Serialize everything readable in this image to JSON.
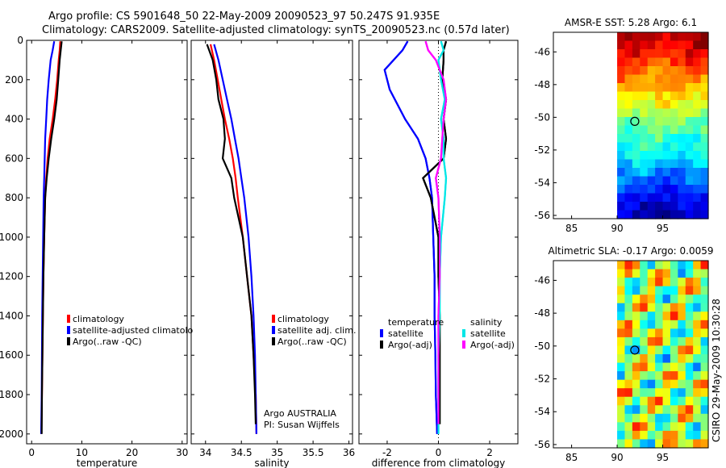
{
  "title": {
    "line1": "Argo profile: CS 5901648_50 22-May-2009 20090523_97 50.247S 91.935E",
    "line2": "Climatology: CARS2009. Satellite-adjusted climatology: synTS_20090523.nc (0.57d later)"
  },
  "stamp": "CSIRO 29-May-2009 10:30:28",
  "colors": {
    "climatology": "#ff0000",
    "satellite": "#0000ff",
    "argo": "#000000",
    "salinity_satellite": "#00e6e6",
    "salinity_argo": "#ff00ff"
  },
  "chart_data": [
    {
      "type": "line",
      "id": "temperature",
      "xlabel": "temperature",
      "ylabel": "",
      "xlim": [
        -1,
        31
      ],
      "ylim": [
        2050,
        0
      ],
      "xticks": [
        0,
        10,
        20,
        30
      ],
      "yticks": [
        0,
        200,
        400,
        600,
        800,
        1000,
        1200,
        1400,
        1600,
        1800,
        2000
      ],
      "legend": [
        "climatology",
        "satellite-adjusted climatolo",
        "Argo(..raw -QC)"
      ],
      "series": [
        {
          "name": "climatology",
          "color": "#ff0000",
          "points": [
            [
              5.7,
              5
            ],
            [
              5.6,
              50
            ],
            [
              5.4,
              100
            ],
            [
              5.1,
              200
            ],
            [
              4.7,
              300
            ],
            [
              4.2,
              400
            ],
            [
              3.6,
              500
            ],
            [
              3.2,
              600
            ],
            [
              2.9,
              700
            ],
            [
              2.7,
              800
            ],
            [
              2.5,
              1000
            ],
            [
              2.35,
              1200
            ],
            [
              2.25,
              1400
            ],
            [
              2.15,
              1600
            ],
            [
              2.05,
              1800
            ],
            [
              1.95,
              2000
            ]
          ]
        },
        {
          "name": "satellite-adjusted climatolo",
          "color": "#0000ff",
          "points": [
            [
              4.5,
              5
            ],
            [
              4.2,
              50
            ],
            [
              3.8,
              100
            ],
            [
              3.4,
              200
            ],
            [
              3.1,
              300
            ],
            [
              2.9,
              400
            ],
            [
              2.7,
              500
            ],
            [
              2.6,
              600
            ],
            [
              2.5,
              700
            ],
            [
              2.4,
              800
            ],
            [
              2.3,
              1000
            ],
            [
              2.2,
              1200
            ],
            [
              2.1,
              1400
            ],
            [
              2.05,
              1600
            ],
            [
              2.0,
              1800
            ],
            [
              1.9,
              2000
            ]
          ]
        },
        {
          "name": "Argo(..raw -QC)",
          "color": "#000000",
          "points": [
            [
              6.0,
              5
            ],
            [
              5.8,
              50
            ],
            [
              5.6,
              100
            ],
            [
              5.3,
              200
            ],
            [
              5.0,
              300
            ],
            [
              4.5,
              400
            ],
            [
              3.9,
              500
            ],
            [
              3.4,
              600
            ],
            [
              3.0,
              700
            ],
            [
              2.7,
              800
            ],
            [
              2.5,
              1000
            ],
            [
              2.35,
              1200
            ],
            [
              2.25,
              1400
            ],
            [
              2.15,
              1600
            ],
            [
              2.05,
              1800
            ],
            [
              2.0,
              2000
            ]
          ]
        }
      ]
    },
    {
      "type": "line",
      "id": "salinity",
      "xlabel": "salinity",
      "xlim": [
        33.8,
        36.05
      ],
      "ylim": [
        2050,
        0
      ],
      "xticks": [
        34,
        34.5,
        35,
        35.5,
        36
      ],
      "legend": [
        "climatology",
        "satellite adj. clim.",
        "Argo(..raw -QC)"
      ],
      "annotation": [
        "Argo AUSTRALIA",
        "PI: Susan Wijffels"
      ],
      "series": [
        {
          "name": "climatology",
          "color": "#ff0000",
          "points": [
            [
              34.07,
              20
            ],
            [
              34.12,
              100
            ],
            [
              34.17,
              200
            ],
            [
              34.22,
              300
            ],
            [
              34.27,
              400
            ],
            [
              34.33,
              500
            ],
            [
              34.38,
              600
            ],
            [
              34.42,
              700
            ],
            [
              34.45,
              800
            ],
            [
              34.52,
              1000
            ],
            [
              34.58,
              1200
            ],
            [
              34.64,
              1400
            ],
            [
              34.67,
              1600
            ],
            [
              34.7,
              1800
            ],
            [
              34.71,
              2000
            ]
          ]
        },
        {
          "name": "satellite adj. clim.",
          "color": "#0000ff",
          "points": [
            [
              34.12,
              20
            ],
            [
              34.18,
              100
            ],
            [
              34.24,
              200
            ],
            [
              34.3,
              300
            ],
            [
              34.36,
              400
            ],
            [
              34.41,
              500
            ],
            [
              34.46,
              600
            ],
            [
              34.5,
              700
            ],
            [
              34.54,
              800
            ],
            [
              34.6,
              1000
            ],
            [
              34.64,
              1200
            ],
            [
              34.67,
              1400
            ],
            [
              34.69,
              1600
            ],
            [
              34.7,
              1800
            ],
            [
              34.71,
              2000
            ]
          ]
        },
        {
          "name": "Argo(..raw -QC)",
          "color": "#000000",
          "points": [
            [
              34.02,
              20
            ],
            [
              34.1,
              100
            ],
            [
              34.15,
              200
            ],
            [
              34.18,
              300
            ],
            [
              34.25,
              400
            ],
            [
              34.27,
              500
            ],
            [
              34.24,
              600
            ],
            [
              34.36,
              700
            ],
            [
              34.4,
              800
            ],
            [
              34.52,
              1000
            ],
            [
              34.58,
              1200
            ],
            [
              34.64,
              1400
            ],
            [
              34.67,
              1600
            ],
            [
              34.69,
              1800
            ],
            [
              34.7,
              1950
            ]
          ]
        }
      ]
    },
    {
      "type": "line",
      "id": "difference",
      "xlabel": "difference from climatology",
      "xlim": [
        -3.1,
        3.1
      ],
      "ylim": [
        2050,
        0
      ],
      "xticks": [
        -2,
        0,
        2
      ],
      "legend_temperature": {
        "heading": "temperature",
        "items": [
          "satellite",
          "Argo(-adj)"
        ]
      },
      "legend_salinity": {
        "heading": "salinity",
        "items": [
          "satellite",
          "Argo(-adj)"
        ]
      },
      "series": [
        {
          "name": "temperature satellite",
          "color": "#0000ff",
          "points": [
            [
              -1.2,
              5
            ],
            [
              -1.4,
              50
            ],
            [
              -2.1,
              150
            ],
            [
              -1.9,
              250
            ],
            [
              -1.3,
              400
            ],
            [
              -0.8,
              500
            ],
            [
              -0.5,
              600
            ],
            [
              -0.35,
              700
            ],
            [
              -0.25,
              800
            ],
            [
              -0.2,
              1000
            ],
            [
              -0.15,
              1200
            ],
            [
              -0.15,
              1400
            ],
            [
              -0.12,
              1600
            ],
            [
              -0.1,
              1800
            ],
            [
              -0.05,
              2000
            ]
          ]
        },
        {
          "name": "temperature Argo(-adj)",
          "color": "#000000",
          "points": [
            [
              0.3,
              5
            ],
            [
              0.2,
              50
            ],
            [
              0.2,
              100
            ],
            [
              0.15,
              200
            ],
            [
              0.3,
              300
            ],
            [
              0.2,
              400
            ],
            [
              0.3,
              500
            ],
            [
              0.2,
              600
            ],
            [
              -0.6,
              700
            ],
            [
              -0.3,
              800
            ],
            [
              0.0,
              1000
            ],
            [
              0.0,
              1200
            ],
            [
              0.05,
              1400
            ],
            [
              0.05,
              1600
            ],
            [
              0.05,
              1800
            ],
            [
              0.05,
              1950
            ]
          ]
        },
        {
          "name": "salinity satellite",
          "color": "#00e6e6",
          "points": [
            [
              0.1,
              5
            ],
            [
              0.2,
              50
            ],
            [
              0.0,
              100
            ],
            [
              0.1,
              200
            ],
            [
              0.25,
              300
            ],
            [
              0.1,
              400
            ],
            [
              0.2,
              500
            ],
            [
              0.2,
              600
            ],
            [
              0.3,
              700
            ],
            [
              0.25,
              800
            ],
            [
              0.1,
              1000
            ],
            [
              0.05,
              1200
            ],
            [
              0.05,
              1400
            ],
            [
              0.0,
              1600
            ],
            [
              0.0,
              1800
            ],
            [
              0.0,
              2000
            ]
          ]
        },
        {
          "name": "salinity Argo(-adj)",
          "color": "#ff00ff",
          "points": [
            [
              -0.5,
              5
            ],
            [
              -0.4,
              50
            ],
            [
              -0.1,
              100
            ],
            [
              0.2,
              200
            ],
            [
              0.3,
              300
            ],
            [
              0.2,
              400
            ],
            [
              0.15,
              500
            ],
            [
              0.1,
              600
            ],
            [
              -0.1,
              700
            ],
            [
              0.0,
              800
            ],
            [
              0.05,
              1000
            ],
            [
              0.05,
              1200
            ],
            [
              0.0,
              1400
            ],
            [
              0.0,
              1600
            ],
            [
              0.0,
              1800
            ],
            [
              0.0,
              1950
            ]
          ]
        }
      ]
    },
    {
      "type": "heatmap",
      "id": "sst_map",
      "title": "AMSR-E SST: 5.28 Argo: 6.1",
      "xlim": [
        83,
        100
      ],
      "ylim": [
        -56.2,
        -44.8
      ],
      "xticks": [
        85,
        90,
        95
      ],
      "yticks": [
        -46,
        -48,
        -50,
        -52,
        -54,
        -56
      ],
      "data_extent": {
        "lon": [
          90,
          100
        ],
        "lat": [
          -56.2,
          -44.8
        ]
      },
      "marker": {
        "lon": 91.935,
        "lat": -50.247
      },
      "description_bands": [
        "warm north (red/orange)",
        "yellow",
        "green",
        "cyan",
        "blue south"
      ]
    },
    {
      "type": "heatmap",
      "id": "sla_map",
      "title": "Altimetric SLA: -0.17 Argo: 0.0059",
      "xlim": [
        83,
        100
      ],
      "ylim": [
        -56.2,
        -44.8
      ],
      "xticks": [
        85,
        90,
        95
      ],
      "yticks": [
        -46,
        -48,
        -50,
        -52,
        -54,
        -56
      ],
      "data_extent": {
        "lon": [
          90,
          100
        ],
        "lat": [
          -56.2,
          -44.8
        ]
      },
      "marker": {
        "lon": 91.935,
        "lat": -50.247
      }
    }
  ]
}
